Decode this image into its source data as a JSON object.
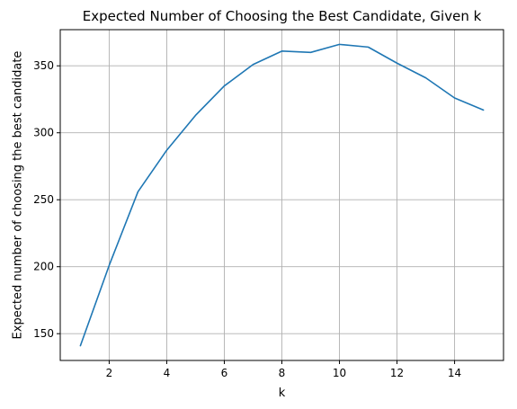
{
  "chart_data": {
    "type": "line",
    "title": "Expected Number of Choosing the Best Candidate, Given k",
    "xlabel": "k",
    "ylabel": "Expected number of choosing the best candidate",
    "x": [
      1,
      2,
      3,
      4,
      5,
      6,
      7,
      8,
      9,
      10,
      11,
      12,
      13,
      14,
      15
    ],
    "series": [
      {
        "values": [
          141,
          201,
          256,
          287,
          313,
          335,
          351,
          361,
          360,
          366,
          364,
          352,
          341,
          326,
          317
        ],
        "color": "#1f77b4"
      }
    ],
    "xlim": [
      0.3,
      15.7
    ],
    "ylim": [
      130,
      377
    ],
    "xticks": [
      2,
      4,
      6,
      8,
      10,
      12,
      14
    ],
    "xtick_labels": [
      "2",
      "4",
      "6",
      "8",
      "10",
      "12",
      "14"
    ],
    "yticks": [
      150,
      200,
      250,
      300,
      350
    ],
    "ytick_labels": [
      "150",
      "200",
      "250",
      "300",
      "350"
    ],
    "grid": true,
    "legend": "none"
  }
}
